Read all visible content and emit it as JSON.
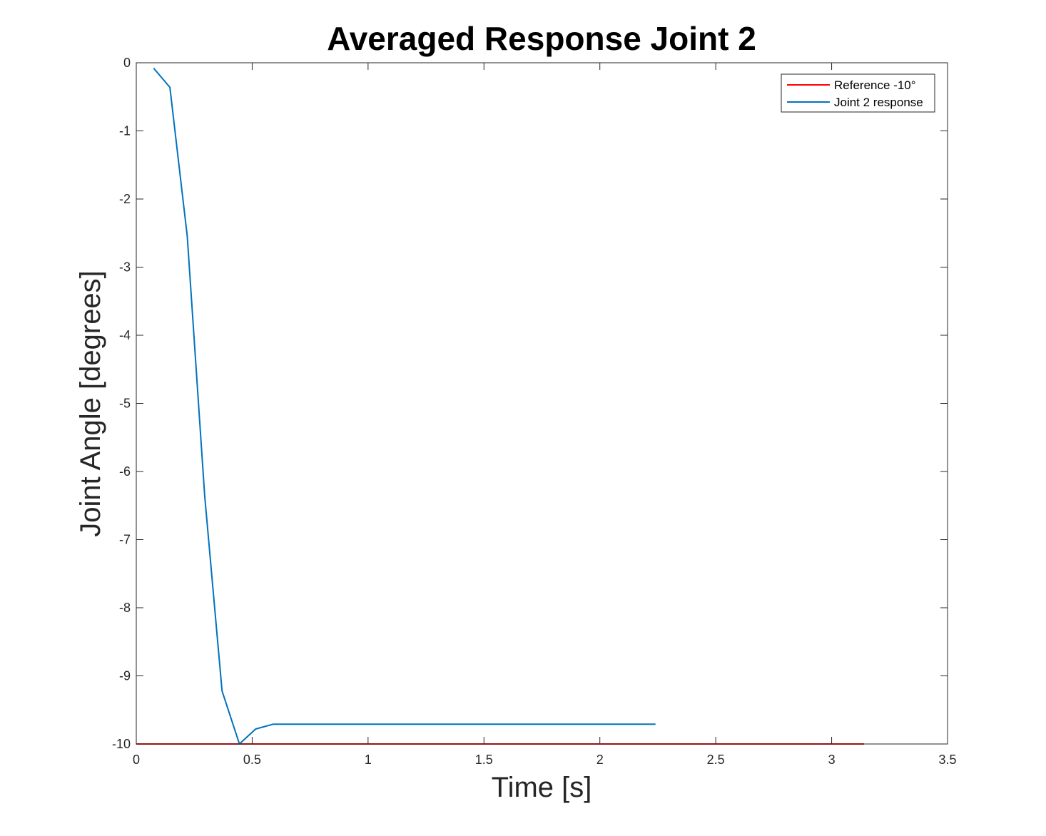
{
  "chart_data": {
    "type": "line",
    "title": "Averaged Response Joint 2",
    "xlabel": "Time [s]",
    "ylabel": "Joint Angle [degrees]",
    "xlim": [
      0,
      3.5
    ],
    "ylim": [
      -10,
      0
    ],
    "x_ticks": [
      0,
      0.5,
      1,
      1.5,
      2,
      2.5,
      3,
      3.5
    ],
    "x_tick_labels": [
      "0",
      "0.5",
      "1",
      "1.5",
      "2",
      "2.5",
      "3",
      "3.5"
    ],
    "y_ticks": [
      0,
      -1,
      -2,
      -3,
      -4,
      -5,
      -6,
      -7,
      -8,
      -9,
      -10
    ],
    "y_tick_labels": [
      "0",
      "-1",
      "-2",
      "-3",
      "-4",
      "-5",
      "-6",
      "-7",
      "-8",
      "-9",
      "-10"
    ],
    "grid": false,
    "legend_position": "top-right",
    "series": [
      {
        "name": "Reference -10°",
        "color": "#FF0000",
        "x": [
          0,
          3.14
        ],
        "y": [
          -10,
          -10
        ]
      },
      {
        "name": "Joint 2 response",
        "color": "#0072BD",
        "x": [
          0.075,
          0.145,
          0.22,
          0.295,
          0.37,
          0.445,
          0.515,
          0.59,
          0.665,
          0.74,
          0.815,
          0.89,
          0.965,
          1.04,
          1.115,
          1.19,
          1.265,
          1.34,
          1.415,
          1.49,
          1.565,
          1.64,
          1.715,
          1.79,
          1.865,
          1.94,
          2.015,
          2.09,
          2.165,
          2.24
        ],
        "y": [
          -0.08,
          -0.36,
          -2.55,
          -6.35,
          -9.22,
          -10.0,
          -9.78,
          -9.71,
          -9.71,
          -9.71,
          -9.71,
          -9.71,
          -9.71,
          -9.71,
          -9.71,
          -9.71,
          -9.71,
          -9.71,
          -9.71,
          -9.71,
          -9.71,
          -9.71,
          -9.71,
          -9.71,
          -9.71,
          -9.71,
          -9.71,
          -9.71,
          -9.71,
          -9.71
        ]
      }
    ]
  }
}
